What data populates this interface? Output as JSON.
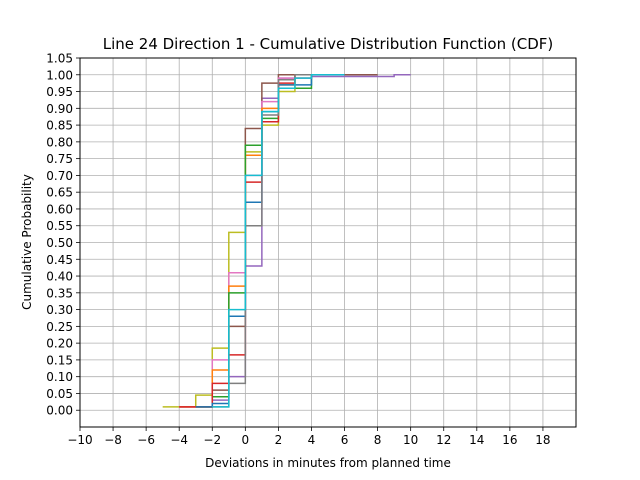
{
  "chart_data": {
    "type": "line",
    "step": "post",
    "title": "Line 24 Direction 1 - Cumulative Distribution Function (CDF)",
    "xlabel": "Deviations in minutes from planned time",
    "ylabel": "Cumulative Probability",
    "xlim": [
      -10,
      20
    ],
    "ylim": [
      -0.05,
      1.05
    ],
    "xticks": [
      -10,
      -8,
      -6,
      -4,
      -2,
      0,
      2,
      4,
      6,
      8,
      10,
      12,
      14,
      16,
      18
    ],
    "yticks": [
      0.0,
      0.05,
      0.1,
      0.15,
      0.2,
      0.25,
      0.3,
      0.35,
      0.4,
      0.45,
      0.5,
      0.55,
      0.6,
      0.65,
      0.7,
      0.75,
      0.8,
      0.85,
      0.9,
      0.95,
      1.0,
      1.05
    ],
    "grid": true,
    "legend": "none",
    "series": [
      {
        "color": "#bcbd22",
        "points": [
          [
            -5,
            0.01
          ],
          [
            -3,
            0.045
          ],
          [
            -2,
            0.185
          ],
          [
            -1,
            0.53
          ],
          [
            0,
            0.77
          ],
          [
            1,
            0.85
          ],
          [
            2,
            0.95
          ],
          [
            3,
            0.99
          ],
          [
            4,
            1.0
          ],
          [
            6,
            1.0
          ]
        ]
      },
      {
        "color": "#9467bd",
        "points": [
          [
            -4,
            0.01
          ],
          [
            -2,
            0.03
          ],
          [
            -1,
            0.1
          ],
          [
            0,
            0.43
          ],
          [
            1,
            0.93
          ],
          [
            2,
            0.99
          ],
          [
            4,
            0.995
          ],
          [
            9,
            1.0
          ],
          [
            10,
            1.0
          ]
        ]
      },
      {
        "color": "#8c564b",
        "points": [
          [
            -3,
            0.01
          ],
          [
            -2,
            0.06
          ],
          [
            -1,
            0.25
          ],
          [
            0,
            0.84
          ],
          [
            1,
            0.975
          ],
          [
            2,
            1.0
          ],
          [
            8,
            1.0
          ]
        ]
      },
      {
        "color": "#e377c2",
        "points": [
          [
            -4,
            0.01
          ],
          [
            -2,
            0.15
          ],
          [
            -1,
            0.41
          ],
          [
            0,
            0.7
          ],
          [
            1,
            0.92
          ],
          [
            2,
            0.99
          ],
          [
            4,
            1.0
          ],
          [
            5,
            1.0
          ]
        ]
      },
      {
        "color": "#ff7f0e",
        "points": [
          [
            -4,
            0.01
          ],
          [
            -2,
            0.12
          ],
          [
            -1,
            0.37
          ],
          [
            0,
            0.76
          ],
          [
            1,
            0.9
          ],
          [
            2,
            0.97
          ],
          [
            3,
            1.0
          ],
          [
            5,
            1.0
          ]
        ]
      },
      {
        "color": "#2ca02c",
        "points": [
          [
            -3,
            0.01
          ],
          [
            -2,
            0.04
          ],
          [
            -1,
            0.35
          ],
          [
            0,
            0.79
          ],
          [
            1,
            0.87
          ],
          [
            2,
            0.96
          ],
          [
            4,
            1.0
          ],
          [
            6,
            1.0
          ]
        ]
      },
      {
        "color": "#d62728",
        "points": [
          [
            -4,
            0.01
          ],
          [
            -2,
            0.08
          ],
          [
            -1,
            0.165
          ],
          [
            0,
            0.68
          ],
          [
            1,
            0.86
          ],
          [
            2,
            0.975
          ],
          [
            3,
            1.0
          ],
          [
            5,
            1.0
          ]
        ]
      },
      {
        "color": "#1f77b4",
        "points": [
          [
            -3,
            0.01
          ],
          [
            -2,
            0.02
          ],
          [
            -1,
            0.28
          ],
          [
            0,
            0.62
          ],
          [
            1,
            0.89
          ],
          [
            2,
            0.97
          ],
          [
            4,
            1.0
          ],
          [
            5,
            1.0
          ]
        ]
      },
      {
        "color": "#7f7f7f",
        "points": [
          [
            -2,
            0.01
          ],
          [
            -1,
            0.08
          ],
          [
            0,
            0.55
          ],
          [
            1,
            0.88
          ],
          [
            2,
            0.985
          ],
          [
            3,
            1.0
          ],
          [
            5,
            1.0
          ]
        ]
      },
      {
        "color": "#17becf",
        "points": [
          [
            -2,
            0.01
          ],
          [
            -1,
            0.3
          ],
          [
            0,
            0.7
          ],
          [
            1,
            0.89
          ],
          [
            2,
            0.96
          ],
          [
            3,
            0.99
          ],
          [
            4,
            1.0
          ],
          [
            6,
            1.0
          ]
        ]
      }
    ]
  }
}
